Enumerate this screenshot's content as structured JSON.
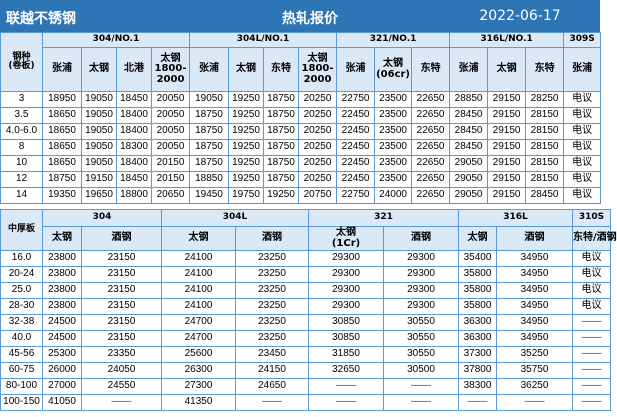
{
  "header": {
    "company": "联越不锈钢",
    "title": "热轧报价",
    "date": "2022-06-17"
  },
  "table1": {
    "row_header_label": "钢种\n(卷板)",
    "groups": [
      "304/NO.1",
      "304L/NO.1",
      "321/NO.1",
      "316L/NO.1",
      "309S"
    ],
    "subheaders": [
      "张浦",
      "太钢",
      "北港",
      "太钢\n1800-\n2000",
      "张浦",
      "太钢",
      "东特",
      "太钢\n1800-\n2000",
      "张浦",
      "太钢\n(06cr)",
      "东特",
      "张浦",
      "太钢",
      "东特",
      "张浦"
    ],
    "rows": [
      {
        "spec": "3",
        "values": [
          "18950",
          "19050",
          "18450",
          "20050",
          "19050",
          "19250",
          "18750",
          "20250",
          "22750",
          "23500",
          "22650",
          "28850",
          "29150",
          "28250",
          "电议"
        ]
      },
      {
        "spec": "3.5",
        "values": [
          "18650",
          "19050",
          "18400",
          "20050",
          "18750",
          "19250",
          "18750",
          "20250",
          "22450",
          "23500",
          "22650",
          "28450",
          "29150",
          "28150",
          "电议"
        ]
      },
      {
        "spec": "4.0-6.0",
        "values": [
          "18650",
          "19050",
          "18400",
          "20050",
          "18750",
          "19250",
          "18750",
          "20250",
          "22450",
          "23500",
          "22650",
          "28450",
          "29150",
          "28150",
          "电议"
        ]
      },
      {
        "spec": "8",
        "values": [
          "18650",
          "19050",
          "18300",
          "20050",
          "18750",
          "19250",
          "18750",
          "20250",
          "22450",
          "23500",
          "22650",
          "28450",
          "29150",
          "28150",
          "电议"
        ]
      },
      {
        "spec": "10",
        "values": [
          "18650",
          "19050",
          "18400",
          "20150",
          "18750",
          "19250",
          "18750",
          "20250",
          "22450",
          "23500",
          "22650",
          "29050",
          "29150",
          "28150",
          "电议"
        ]
      },
      {
        "spec": "12",
        "values": [
          "18750",
          "19150",
          "18450",
          "20150",
          "18850",
          "19250",
          "18750",
          "20250",
          "22450",
          "23500",
          "22650",
          "29050",
          "29150",
          "28150",
          "电议"
        ]
      },
      {
        "spec": "14",
        "values": [
          "19350",
          "19650",
          "18800",
          "20650",
          "19450",
          "19750",
          "19250",
          "20750",
          "22750",
          "24000",
          "22650",
          "29050",
          "29150",
          "28450",
          "电议"
        ]
      }
    ]
  },
  "table2": {
    "row_header_label": "中厚板",
    "groups": [
      "304",
      "304L",
      "321",
      "316L",
      "310S"
    ],
    "subheaders": [
      "太钢",
      "酒钢",
      "太钢",
      "酒钢",
      "太钢\n(1Cr)",
      "酒钢",
      "太钢",
      "酒钢",
      "东特/酒钢"
    ],
    "rows": [
      {
        "spec": "16.0",
        "values": [
          "23800",
          "23150",
          "24100",
          "23250",
          "29300",
          "29300",
          "35400",
          "34950",
          "电议"
        ]
      },
      {
        "spec": "20-24",
        "values": [
          "23800",
          "23150",
          "24100",
          "23250",
          "29300",
          "29300",
          "35800",
          "34950",
          "电议"
        ]
      },
      {
        "spec": "25.0",
        "values": [
          "23800",
          "23150",
          "24100",
          "23250",
          "29300",
          "29300",
          "35800",
          "34950",
          "电议"
        ]
      },
      {
        "spec": "28-30",
        "values": [
          "23800",
          "23150",
          "24100",
          "23250",
          "29300",
          "29300",
          "35800",
          "34950",
          "电议"
        ]
      },
      {
        "spec": "32-38",
        "values": [
          "24500",
          "23150",
          "24700",
          "23250",
          "30850",
          "30550",
          "36300",
          "34950",
          "——"
        ]
      },
      {
        "spec": "40.0",
        "values": [
          "24500",
          "23150",
          "24700",
          "23250",
          "30850",
          "30550",
          "36300",
          "34950",
          "——"
        ]
      },
      {
        "spec": "45-56",
        "values": [
          "25300",
          "23350",
          "25600",
          "23450",
          "31850",
          "30550",
          "37300",
          "35250",
          "——"
        ]
      },
      {
        "spec": "60-75",
        "values": [
          "26000",
          "24050",
          "26300",
          "24150",
          "32650",
          "30500",
          "37800",
          "35750",
          "——"
        ]
      },
      {
        "spec": "80-100",
        "values": [
          "27000",
          "24550",
          "27300",
          "24650",
          "——",
          "——",
          "38300",
          "36250",
          "——"
        ]
      },
      {
        "spec": "100-150",
        "values": [
          "41050",
          "——",
          "41350",
          "——",
          "——",
          "——",
          "——",
          "——",
          "——"
        ]
      }
    ]
  }
}
